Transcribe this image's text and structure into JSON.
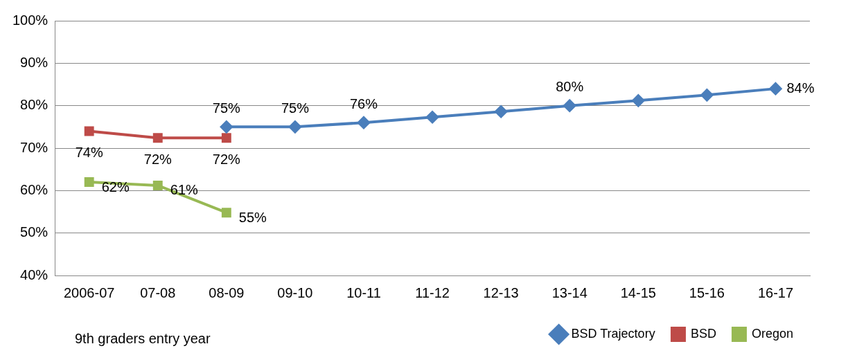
{
  "chart_data": {
    "type": "line",
    "xlabel": "9th graders entry year",
    "categories": [
      "2006-07",
      "07-08",
      "08-09",
      "09-10",
      "10-11",
      "11-12",
      "12-13",
      "13-14",
      "14-15",
      "15-16",
      "16-17"
    ],
    "series": [
      {
        "name": "BSD Trajectory",
        "color": "#4a7ebb",
        "marker": "diamond",
        "values": [
          null,
          null,
          75,
          75,
          76,
          77.3,
          78.6,
          80,
          81.2,
          82.5,
          84
        ],
        "value_labels": [
          null,
          null,
          "75%",
          "75%",
          "76%",
          null,
          null,
          "80%",
          null,
          null,
          "84%"
        ]
      },
      {
        "name": "BSD",
        "color": "#be4b48",
        "marker": "square",
        "values": [
          74,
          72.4,
          72.4,
          null,
          null,
          null,
          null,
          null,
          null,
          null,
          null
        ],
        "value_labels": [
          "74%",
          "72%",
          "72%",
          null,
          null,
          null,
          null,
          null,
          null,
          null,
          null
        ]
      },
      {
        "name": "Oregon",
        "color": "#98b954",
        "marker": "square",
        "values": [
          62,
          61.2,
          54.8,
          null,
          null,
          null,
          null,
          null,
          null,
          null,
          null
        ],
        "value_labels": [
          "62%",
          "61%",
          "55%",
          null,
          null,
          null,
          null,
          null,
          null,
          null,
          null
        ]
      }
    ],
    "ylim": [
      40,
      100
    ],
    "yticks": [
      {
        "value": 40,
        "label": "40%"
      },
      {
        "value": 50,
        "label": "50%"
      },
      {
        "value": 60,
        "label": "60%"
      },
      {
        "value": 70,
        "label": "70%"
      },
      {
        "value": 80,
        "label": "80%"
      },
      {
        "value": 90,
        "label": "90%"
      },
      {
        "value": 100,
        "label": "100%"
      }
    ],
    "grid": "y",
    "legend": "bottom right",
    "line_style": "solid"
  }
}
